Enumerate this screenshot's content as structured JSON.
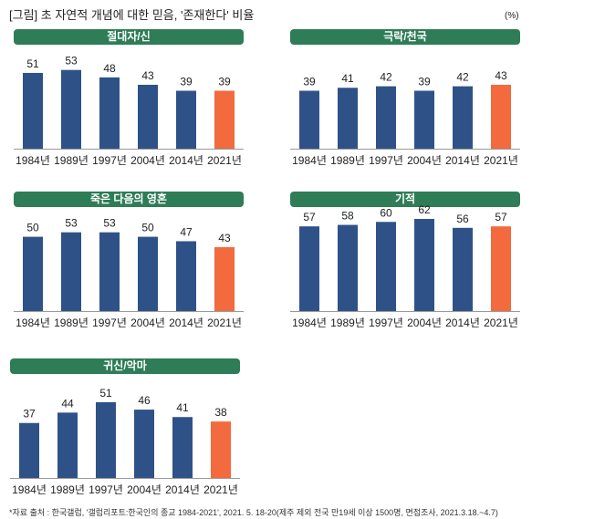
{
  "figure": {
    "title": "[그림] 초 자연적 개념에 대한 믿음, '존재한다' 비율",
    "unit": "(%)",
    "footnote": "*자료 출처 : 한국갤럽, '갤럽리포트:한국인의 종교 1984-2021', 2021. 5. 18-20(제주 제외 전국 만19세 이상 1500명, 면접조사, 2021.3.18.~4.7)"
  },
  "colors": {
    "header": "#2e7d57",
    "bar": "#2e5288",
    "highlight": "#f26a3d",
    "axis": "#999999"
  },
  "chart_data": [
    {
      "type": "bar",
      "title": "절대자/신",
      "categories": [
        "1984년",
        "1989년",
        "1997년",
        "2004년",
        "2014년",
        "2021년"
      ],
      "values": [
        51,
        53,
        48,
        43,
        39,
        39
      ],
      "highlight_index": 5,
      "ylim": [
        0,
        70
      ],
      "grid": false
    },
    {
      "type": "bar",
      "title": "극락/천국",
      "categories": [
        "1984년",
        "1989년",
        "1997년",
        "2004년",
        "2014년",
        "2021년"
      ],
      "values": [
        39,
        41,
        42,
        39,
        42,
        43
      ],
      "highlight_index": 5,
      "ylim": [
        0,
        70
      ],
      "grid": false
    },
    {
      "type": "bar",
      "title": "죽은 다음의 영혼",
      "categories": [
        "1984년",
        "1989년",
        "1997년",
        "2004년",
        "2014년",
        "2021년"
      ],
      "values": [
        50,
        53,
        53,
        50,
        47,
        43
      ],
      "highlight_index": 5,
      "ylim": [
        0,
        70
      ],
      "grid": false
    },
    {
      "type": "bar",
      "title": "기적",
      "categories": [
        "1984년",
        "1989년",
        "1997년",
        "2004년",
        "2014년",
        "2021년"
      ],
      "values": [
        57,
        58,
        60,
        62,
        56,
        57
      ],
      "highlight_index": 5,
      "ylim": [
        0,
        70
      ],
      "grid": false
    },
    {
      "type": "bar",
      "title": "귀신/악마",
      "categories": [
        "1984년",
        "1989년",
        "1997년",
        "2004년",
        "2014년",
        "2021년"
      ],
      "values": [
        37,
        44,
        51,
        46,
        41,
        38
      ],
      "highlight_index": 5,
      "ylim": [
        0,
        70
      ],
      "grid": false
    }
  ]
}
